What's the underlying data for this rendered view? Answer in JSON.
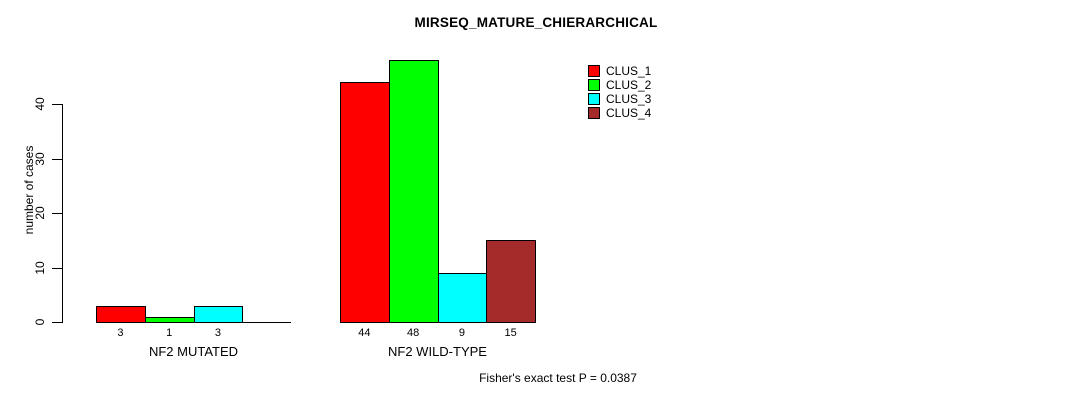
{
  "title": "MIRSEQ_MATURE_CHIERARCHICAL",
  "chart_data": {
    "type": "bar",
    "title": "MIRSEQ_MATURE_CHIERARCHICAL",
    "xlabel": "",
    "ylabel": "number of cases",
    "ylim": [
      0,
      40
    ],
    "yticks": [
      0,
      10,
      20,
      30,
      40
    ],
    "grid": false,
    "legend_position": "top-right",
    "categories": [
      "NF2 MUTATED",
      "NF2 WILD-TYPE"
    ],
    "series": [
      {
        "name": "CLUS_1",
        "color": "#ff0000",
        "values": [
          3,
          44
        ]
      },
      {
        "name": "CLUS_2",
        "color": "#00ff00",
        "values": [
          1,
          48
        ]
      },
      {
        "name": "CLUS_3",
        "color": "#00ffff",
        "values": [
          3,
          9
        ]
      },
      {
        "name": "CLUS_4",
        "color": "#a52a2a",
        "values": [
          0,
          15
        ]
      }
    ],
    "bar_labels": [
      [
        "3",
        "1",
        "3",
        ""
      ],
      [
        "44",
        "48",
        "9",
        "15"
      ]
    ],
    "annotation": "Fisher's exact test P = 0.0387"
  }
}
